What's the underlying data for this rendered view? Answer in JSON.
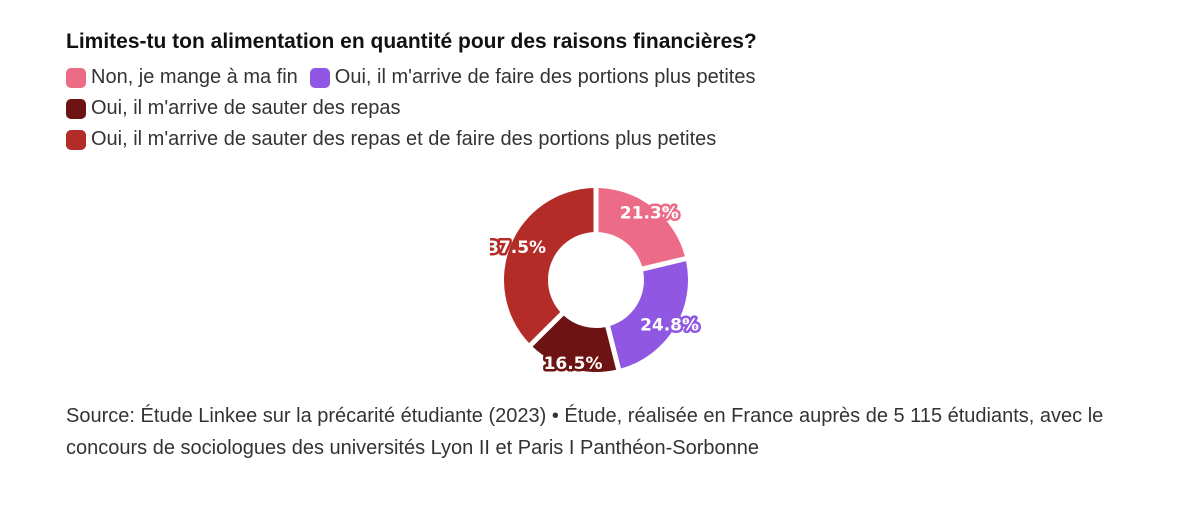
{
  "chart_data": {
    "type": "pie",
    "variant": "donut",
    "title": "Limites-tu ton alimentation en quantité pour des raisons financières?",
    "series": [
      {
        "name": "Non, je mange à ma fin",
        "value": 21.3,
        "label": "21.3%",
        "color": "#ec6b87"
      },
      {
        "name": "Oui, il m'arrive de faire des portions plus petites",
        "value": 24.8,
        "label": "24.8%",
        "color": "#8f57e2"
      },
      {
        "name": "Oui, il m'arrive de sauter des repas",
        "value": 16.5,
        "label": "16.5%",
        "color": "#6e1313"
      },
      {
        "name": "Oui, il m'arrive de sauter des repas et de faire des portions plus petites",
        "value": 37.5,
        "label": "37.5%",
        "color": "#b32c28"
      }
    ],
    "legend_position": "top-left"
  },
  "footer": {
    "source": "Source: Étude Linkee sur la précarité étudiante (2023) • Étude, réalisée en France auprès de 5 115 étudiants, avec le concours de sociologues des universités Lyon II et Paris I Panthéon-Sorbonne"
  }
}
